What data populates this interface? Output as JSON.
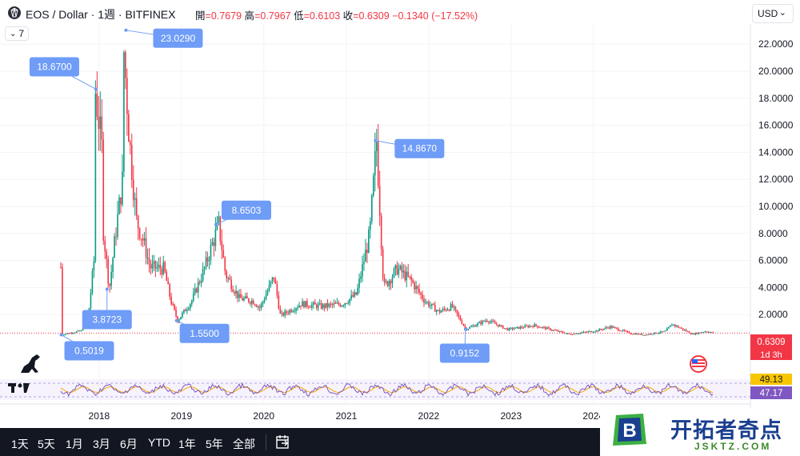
{
  "header": {
    "title": "EOS / Dollar · 1週 · BITFINEX",
    "open_label": "開",
    "open_value": "=0.7679",
    "high_label": "高",
    "high_value": "=0.7967",
    "low_label": "低",
    "low_value": "=0.6103",
    "close_label": "收",
    "close_value": "=0.6309",
    "change_value": "−0.1340 (−17.52%)",
    "currency": "USD",
    "indicator_count": "7"
  },
  "bottom_bar": {
    "ranges": [
      "1天",
      "5天",
      "1月",
      "3月",
      "6月",
      "YTD",
      "1年",
      "5年",
      "全部"
    ]
  },
  "watermark": {
    "title": "开拓者奇点",
    "subtitle": "JSKTZ.COM",
    "logo_letter": "B"
  },
  "colors": {
    "up": "#089981",
    "down": "#f23645",
    "label_bg": "#6e9cf7",
    "rsi": "#7e57c2",
    "rsi_ma": "#f7a600"
  },
  "chart_data": {
    "type": "candlestick",
    "xlabel": "",
    "ylabel": "",
    "ylim": [
      0,
      24
    ],
    "yticks": [
      "2.0000",
      "4.0000",
      "6.0000",
      "8.0000",
      "10.0000",
      "12.0000",
      "14.0000",
      "16.0000",
      "18.0000",
      "20.0000",
      "22.0000"
    ],
    "x_ticks": [
      "2018",
      "2019",
      "2020",
      "2021",
      "2022",
      "2023",
      "2024"
    ],
    "last_price": "0.6309",
    "countdown": "1d 3h",
    "annotations": [
      {
        "date": "2017-07-17",
        "value": "0.5019"
      },
      {
        "date": "2017-12-18",
        "value": "18.6700"
      },
      {
        "date": "2018-02-05",
        "value": "3.8723"
      },
      {
        "date": "2018-04-30",
        "value": "23.0290"
      },
      {
        "date": "2018-12-10",
        "value": "1.5500"
      },
      {
        "date": "2019-06-03",
        "value": "8.6503"
      },
      {
        "date": "2021-05-10",
        "value": "14.8670"
      },
      {
        "date": "2022-06-13",
        "value": "0.9152"
      }
    ],
    "price_path": [
      [
        "2017-07",
        5.5
      ],
      [
        "2017-07",
        0.5
      ],
      [
        "2017-10",
        0.8
      ],
      [
        "2017-11",
        2.0
      ],
      [
        "2017-12",
        7.0
      ],
      [
        "2017-12",
        18.67
      ],
      [
        "2018-01",
        14.0
      ],
      [
        "2018-01",
        9.0
      ],
      [
        "2018-02",
        3.87
      ],
      [
        "2018-03",
        8.0
      ],
      [
        "2018-04",
        12.0
      ],
      [
        "2018-04",
        23.03
      ],
      [
        "2018-05",
        15.0
      ],
      [
        "2018-06",
        9.0
      ],
      [
        "2018-07",
        7.5
      ],
      [
        "2018-08",
        5.5
      ],
      [
        "2018-10",
        5.4
      ],
      [
        "2018-11",
        3.0
      ],
      [
        "2018-12",
        1.55
      ],
      [
        "2019-02",
        3.0
      ],
      [
        "2019-04",
        5.5
      ],
      [
        "2019-06",
        8.65
      ],
      [
        "2019-07",
        5.0
      ],
      [
        "2019-09",
        3.2
      ],
      [
        "2019-11",
        3.0
      ],
      [
        "2019-12",
        2.5
      ],
      [
        "2020-02",
        4.8
      ],
      [
        "2020-03",
        1.9
      ],
      [
        "2020-06",
        2.8
      ],
      [
        "2020-09",
        2.6
      ],
      [
        "2020-12",
        2.8
      ],
      [
        "2021-02",
        3.5
      ],
      [
        "2021-04",
        8.0
      ],
      [
        "2021-05",
        14.867
      ],
      [
        "2021-06",
        4.0
      ],
      [
        "2021-08",
        5.4
      ],
      [
        "2021-10",
        4.5
      ],
      [
        "2021-12",
        3.0
      ],
      [
        "2022-02",
        2.2
      ],
      [
        "2022-04",
        2.6
      ],
      [
        "2022-06",
        0.9152
      ],
      [
        "2022-09",
        1.6
      ],
      [
        "2022-12",
        0.9
      ],
      [
        "2023-04",
        1.2
      ],
      [
        "2023-09",
        0.55
      ],
      [
        "2024-01",
        0.8
      ],
      [
        "2024-03",
        1.1
      ],
      [
        "2024-06",
        0.6
      ],
      [
        "2024-08",
        0.5
      ],
      [
        "2024-11",
        0.75
      ],
      [
        "2024-12",
        1.3
      ],
      [
        "2025-03",
        0.55
      ],
      [
        "2025-05",
        0.77
      ],
      [
        "2025-06",
        0.6309
      ]
    ],
    "rsi": {
      "value1": "49.13",
      "value2": "47.17"
    }
  }
}
